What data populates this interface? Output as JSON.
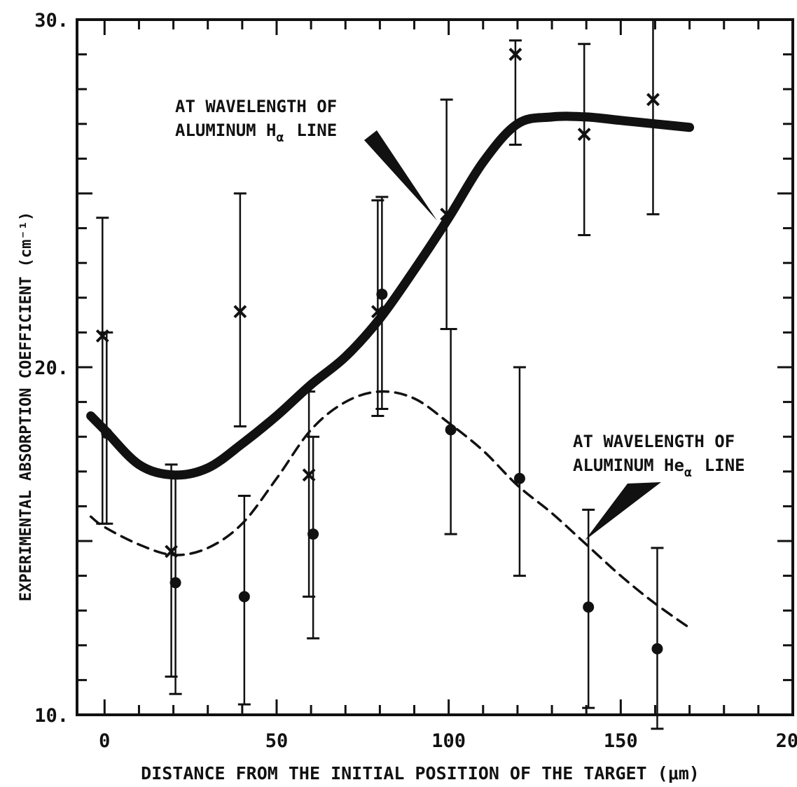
{
  "chart_data": {
    "type": "scatter",
    "title": "",
    "xlabel": "DISTANCE FROM THE INITIAL POSITION OF THE TARGET (μm)",
    "ylabel": "EXPERIMENTAL ABSORPTION COEFFICIENT (cm⁻¹)",
    "xlim": [
      -8,
      200
    ],
    "ylim": [
      10,
      30
    ],
    "x_ticks": [
      0,
      50,
      100,
      150,
      200
    ],
    "x_tick_labels": [
      "0",
      "50",
      "100",
      "150",
      "200"
    ],
    "y_ticks": [
      10,
      20,
      30
    ],
    "y_tick_labels": [
      "10.",
      "20.",
      "30."
    ],
    "grid": false,
    "series": [
      {
        "marker": "x",
        "points": [
          {
            "x": 0,
            "y": 20.9,
            "lo": 15.5,
            "hi": 24.3
          },
          {
            "x": 20,
            "y": 14.7,
            "lo": 11.1,
            "hi": 17.2
          },
          {
            "x": 40,
            "y": 21.6,
            "lo": 18.3,
            "hi": 25.0
          },
          {
            "x": 60,
            "y": 16.9,
            "lo": 13.4,
            "hi": 19.3
          },
          {
            "x": 80,
            "y": 21.6,
            "lo": 18.6,
            "hi": 24.8
          },
          {
            "x": 100,
            "y": 24.4,
            "lo": 21.1,
            "hi": 27.7
          },
          {
            "x": 120,
            "y": 29.0,
            "lo": 26.4,
            "hi": 29.4
          },
          {
            "x": 140,
            "y": 26.7,
            "lo": 23.8,
            "hi": 29.3
          },
          {
            "x": 160,
            "y": 27.7,
            "lo": 24.4,
            "hi": 30.0
          }
        ]
      },
      {
        "marker": "o",
        "points": [
          {
            "x": 0,
            "y": 18.1,
            "lo": 15.5,
            "hi": 21.0
          },
          {
            "x": 20,
            "y": 13.8,
            "lo": 10.6,
            "hi": 16.9
          },
          {
            "x": 40,
            "y": 13.4,
            "lo": 10.3,
            "hi": 16.3
          },
          {
            "x": 60,
            "y": 15.2,
            "lo": 12.2,
            "hi": 18.0
          },
          {
            "x": 80,
            "y": 22.1,
            "lo": 18.8,
            "hi": 24.9
          },
          {
            "x": 100,
            "y": 18.2,
            "lo": 15.2,
            "hi": 21.1
          },
          {
            "x": 120,
            "y": 16.8,
            "lo": 14.0,
            "hi": 20.0
          },
          {
            "x": 140,
            "y": 13.1,
            "lo": 10.2,
            "hi": 15.9
          },
          {
            "x": 160,
            "y": 11.9,
            "lo": 9.6,
            "hi": 14.8
          }
        ]
      }
    ],
    "curves": [
      {
        "style": "solid",
        "label": "AT WAVELENGTH OF ALUMINUM Hα LINE",
        "points": [
          [
            -4,
            18.6
          ],
          [
            0,
            18.2
          ],
          [
            10,
            17.2
          ],
          [
            20,
            16.9
          ],
          [
            30,
            17.1
          ],
          [
            40,
            17.8
          ],
          [
            50,
            18.6
          ],
          [
            60,
            19.5
          ],
          [
            70,
            20.3
          ],
          [
            80,
            21.4
          ],
          [
            90,
            22.8
          ],
          [
            100,
            24.3
          ],
          [
            110,
            25.9
          ],
          [
            120,
            27.0
          ],
          [
            130,
            27.2
          ],
          [
            140,
            27.2
          ],
          [
            150,
            27.1
          ],
          [
            160,
            27.0
          ],
          [
            170,
            26.9
          ]
        ]
      },
      {
        "style": "dashed",
        "label": "AT WAVELENGTH OF ALUMINUM Heα LINE",
        "points": [
          [
            -4,
            15.7
          ],
          [
            0,
            15.4
          ],
          [
            10,
            14.9
          ],
          [
            20,
            14.6
          ],
          [
            30,
            14.8
          ],
          [
            40,
            15.5
          ],
          [
            50,
            16.8
          ],
          [
            60,
            18.2
          ],
          [
            70,
            19.0
          ],
          [
            80,
            19.3
          ],
          [
            90,
            19.1
          ],
          [
            100,
            18.4
          ],
          [
            110,
            17.6
          ],
          [
            120,
            16.6
          ],
          [
            130,
            15.8
          ],
          [
            140,
            14.9
          ],
          [
            150,
            14.0
          ],
          [
            160,
            13.2
          ],
          [
            170,
            12.5
          ]
        ]
      }
    ],
    "annotations": [
      {
        "text_line1": "AT WAVELENGTH OF",
        "text_line2_main": "ALUMINUM H",
        "text_line2_sub": "α",
        "text_line2_tail": "LINE",
        "points_to": [
          95,
          24.5
        ]
      },
      {
        "text_line1": "AT WAVELENGTH OF",
        "text_line2_main": "ALUMINUM He",
        "text_line2_sub": "α",
        "text_line2_tail": "LINE",
        "points_to": [
          140,
          14.9
        ]
      }
    ]
  }
}
